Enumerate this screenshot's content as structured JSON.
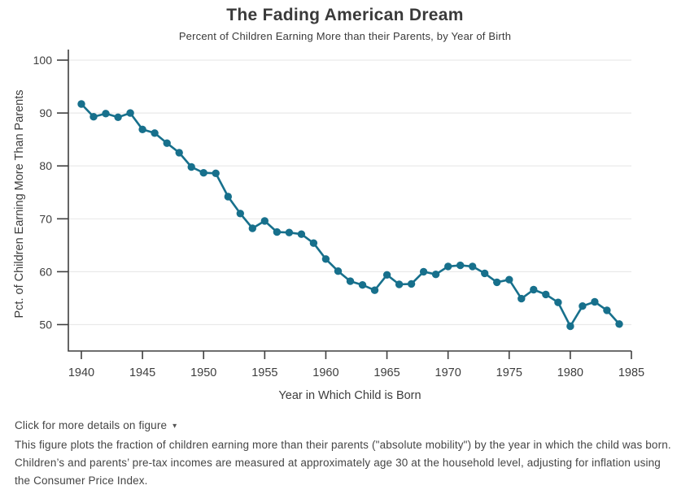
{
  "header": {
    "title": "The Fading American Dream",
    "subtitle": "Percent of Children Earning More than their Parents, by Year of Birth"
  },
  "chart_data": {
    "type": "line",
    "title": "The Fading American Dream",
    "subtitle": "Percent of Children Earning More than their Parents, by Year of Birth",
    "xlabel": "Year in Which Child is Born",
    "ylabel": "Pct. of Children Earning More Than Parents",
    "x_ticks": [
      1940,
      1945,
      1950,
      1955,
      1960,
      1965,
      1970,
      1975,
      1980,
      1985
    ],
    "y_ticks": [
      50,
      60,
      70,
      80,
      90,
      100
    ],
    "ylim": [
      45.7,
      101.4
    ],
    "xlim": [
      1938.9,
      1985
    ],
    "grid": "horizontal",
    "legend": "none",
    "line_color": "#17708C",
    "grid_color": "#e9e9e9",
    "axis_color": "#3f3f3f",
    "x": [
      1940,
      1941,
      1942,
      1943,
      1944,
      1945,
      1946,
      1947,
      1948,
      1949,
      1950,
      1951,
      1952,
      1953,
      1954,
      1955,
      1956,
      1957,
      1958,
      1959,
      1960,
      1961,
      1962,
      1963,
      1964,
      1965,
      1966,
      1967,
      1968,
      1969,
      1970,
      1971,
      1972,
      1973,
      1974,
      1975,
      1976,
      1977,
      1978,
      1979,
      1980,
      1981,
      1982,
      1983,
      1984
    ],
    "y": [
      91.7,
      89.3,
      89.9,
      89.2,
      90.0,
      86.9,
      86.2,
      84.3,
      82.5,
      79.8,
      78.7,
      78.6,
      74.2,
      71.0,
      68.2,
      69.6,
      67.5,
      67.4,
      67.1,
      65.4,
      62.4,
      60.1,
      58.2,
      57.5,
      56.5,
      59.4,
      57.6,
      57.7,
      60.0,
      59.5,
      61.0,
      61.2,
      61.0,
      59.7,
      58.0,
      58.5,
      54.9,
      56.6,
      55.7,
      54.2,
      49.7,
      53.5,
      54.3,
      52.7,
      50.1
    ]
  },
  "footer": {
    "toggle_label": "Click for more details on figure",
    "caret": "▾",
    "description": "This figure plots the fraction of children earning more than their parents (\"absolute mobility\") by the year in which the child was born. Children’s and parents’ pre-tax incomes are measured at approximately age 30 at the household level, adjusting for inflation using the Consumer Price Index."
  }
}
